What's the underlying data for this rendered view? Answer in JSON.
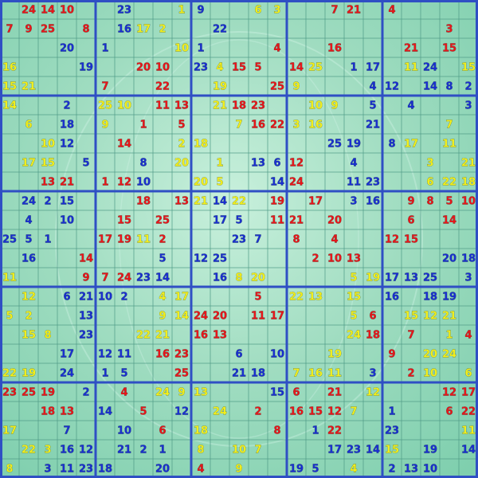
{
  "grid": {
    "palette": {
      "r": "#e8161a",
      "b": "#1a2fd0",
      "y": "#f2ee1c"
    },
    "rows": [
      [
        null,
        24,
        14,
        10,
        null,
        null,
        23,
        null,
        null,
        1,
        9,
        null,
        null,
        6,
        3,
        null,
        null,
        7,
        21,
        null,
        4,
        null,
        null,
        null,
        null
      ],
      [
        7,
        9,
        25,
        null,
        8,
        null,
        16,
        17,
        2,
        null,
        null,
        22,
        null,
        null,
        null,
        null,
        null,
        null,
        null,
        null,
        null,
        null,
        null,
        3,
        null
      ],
      [
        null,
        null,
        null,
        20,
        null,
        1,
        null,
        null,
        null,
        10,
        1,
        null,
        null,
        null,
        4,
        null,
        null,
        16,
        null,
        null,
        null,
        21,
        null,
        15,
        null
      ],
      [
        16,
        null,
        null,
        null,
        19,
        null,
        null,
        20,
        10,
        null,
        23,
        4,
        15,
        5,
        null,
        14,
        25,
        null,
        1,
        17,
        null,
        11,
        24,
        null,
        15
      ],
      [
        15,
        21,
        null,
        null,
        null,
        7,
        null,
        null,
        22,
        null,
        null,
        19,
        null,
        null,
        25,
        9,
        null,
        null,
        null,
        4,
        12,
        null,
        14,
        8,
        2
      ],
      [
        14,
        null,
        null,
        2,
        null,
        25,
        10,
        null,
        11,
        13,
        null,
        21,
        18,
        23,
        null,
        null,
        10,
        9,
        null,
        5,
        null,
        4,
        null,
        null,
        3
      ],
      [
        null,
        6,
        null,
        18,
        null,
        9,
        null,
        1,
        null,
        5,
        null,
        null,
        7,
        16,
        22,
        3,
        16,
        null,
        null,
        21,
        null,
        null,
        null,
        7,
        null
      ],
      [
        null,
        null,
        10,
        12,
        null,
        null,
        14,
        null,
        null,
        2,
        18,
        null,
        null,
        null,
        null,
        null,
        null,
        25,
        19,
        null,
        8,
        17,
        null,
        11,
        null
      ],
      [
        null,
        17,
        15,
        null,
        5,
        null,
        null,
        8,
        null,
        20,
        null,
        1,
        null,
        13,
        6,
        12,
        null,
        null,
        4,
        null,
        null,
        null,
        3,
        null,
        21
      ],
      [
        null,
        null,
        13,
        21,
        null,
        1,
        12,
        10,
        null,
        null,
        20,
        5,
        null,
        null,
        14,
        24,
        null,
        null,
        11,
        23,
        null,
        null,
        6,
        22,
        18
      ],
      [
        null,
        24,
        2,
        15,
        null,
        null,
        null,
        18,
        null,
        13,
        21,
        14,
        22,
        null,
        19,
        null,
        17,
        null,
        3,
        16,
        null,
        9,
        8,
        5,
        10
      ],
      [
        null,
        4,
        null,
        10,
        null,
        null,
        15,
        null,
        25,
        null,
        null,
        17,
        5,
        null,
        11,
        21,
        null,
        20,
        null,
        null,
        null,
        6,
        null,
        14,
        null
      ],
      [
        25,
        5,
        1,
        null,
        null,
        17,
        19,
        11,
        2,
        null,
        null,
        null,
        23,
        7,
        null,
        8,
        null,
        4,
        null,
        null,
        12,
        15,
        null,
        null,
        null
      ],
      [
        null,
        16,
        null,
        null,
        14,
        null,
        null,
        null,
        5,
        null,
        12,
        25,
        null,
        null,
        null,
        null,
        2,
        10,
        13,
        null,
        null,
        null,
        null,
        20,
        18
      ],
      [
        11,
        null,
        null,
        null,
        9,
        7,
        24,
        23,
        14,
        null,
        null,
        16,
        8,
        20,
        null,
        null,
        null,
        null,
        5,
        19,
        17,
        13,
        25,
        null,
        3
      ],
      [
        null,
        12,
        null,
        6,
        21,
        10,
        2,
        null,
        4,
        17,
        null,
        null,
        null,
        5,
        null,
        22,
        13,
        null,
        15,
        null,
        16,
        null,
        18,
        19,
        null
      ],
      [
        5,
        2,
        null,
        null,
        13,
        null,
        null,
        null,
        9,
        14,
        24,
        20,
        null,
        11,
        17,
        null,
        null,
        null,
        5,
        6,
        null,
        15,
        12,
        21,
        null
      ],
      [
        null,
        15,
        8,
        null,
        23,
        null,
        null,
        22,
        21,
        null,
        16,
        13,
        null,
        null,
        null,
        null,
        null,
        null,
        24,
        18,
        null,
        7,
        null,
        1,
        4
      ],
      [
        null,
        null,
        null,
        17,
        null,
        12,
        11,
        null,
        16,
        23,
        null,
        null,
        6,
        null,
        10,
        null,
        null,
        19,
        null,
        null,
        9,
        null,
        20,
        24,
        null
      ],
      [
        22,
        19,
        null,
        24,
        null,
        1,
        5,
        null,
        null,
        25,
        null,
        null,
        21,
        18,
        null,
        7,
        16,
        11,
        null,
        3,
        null,
        2,
        10,
        null,
        6
      ],
      [
        23,
        25,
        19,
        null,
        2,
        null,
        4,
        null,
        24,
        9,
        13,
        null,
        null,
        null,
        15,
        6,
        null,
        21,
        null,
        12,
        null,
        null,
        null,
        12,
        17
      ],
      [
        null,
        null,
        18,
        13,
        null,
        14,
        null,
        5,
        null,
        12,
        null,
        24,
        null,
        2,
        null,
        16,
        15,
        12,
        7,
        null,
        1,
        null,
        null,
        6,
        22
      ],
      [
        17,
        null,
        null,
        7,
        null,
        null,
        10,
        null,
        6,
        null,
        18,
        null,
        null,
        null,
        8,
        null,
        1,
        22,
        null,
        null,
        23,
        null,
        null,
        null,
        11
      ],
      [
        null,
        22,
        3,
        16,
        12,
        null,
        21,
        2,
        1,
        null,
        8,
        null,
        10,
        7,
        null,
        null,
        null,
        17,
        23,
        14,
        15,
        null,
        19,
        null,
        14
      ],
      [
        8,
        null,
        3,
        11,
        23,
        18,
        null,
        null,
        20,
        null,
        4,
        null,
        9,
        null,
        null,
        19,
        5,
        null,
        4,
        null,
        2,
        13,
        10,
        null,
        null
      ]
    ],
    "colors": [
      ".rrr..b..yb..yy..rr.r....",
      "rrr.r.byy..b...........r.",
      "...b.b...yb...r..r...r.r.",
      "y...b..rr.byrr.ry.bb.yb.y",
      "yy...r..r..y..ry...bb.bbb",
      "y..b.yy.rr.yrr..yy.b.b..b",
      ".y.b.y.r.r..yrryy..b...y.",
      "..yb..r..yy......bb.by.y.",
      ".yy.b..b.y.y.bbr..b...y.y",
      "..rr.rrb..yy..br..bb..yyy",
      ".bbb...r.ryby.r.r.bb.rrrr",
      ".b.b..r.r..bb.rr.r...r.r.",
      "bbb..rryr...bb.r.r..rr...",
      ".b..r...b.bb....rrr....bb",
      "y...rrrbb..byy....yybbb.b",
      ".y.bbbb.yy...r.yy.y.b.bb.",
      "yy..b...yyrr.rr...yr.yyy.",
      ".yy.b..yy.rr......yr.r.yr",
      "...b.bb.rr..b.b..y..r.yy.",
      "yy.b.bb..r..bb.yyy.b.ry.y",
      "rrr.b.r.yyy...br.r.y...rr",
      "..rr.b.r.b.y.r.rrry.b..rr",
      "y..b..b.r.y...r.br..b...y",
      ".yybb.bbb.y.yy...bbby.b.b",
      "y.bbbb..b.r.y..bb.y.bbb.."
    ]
  }
}
